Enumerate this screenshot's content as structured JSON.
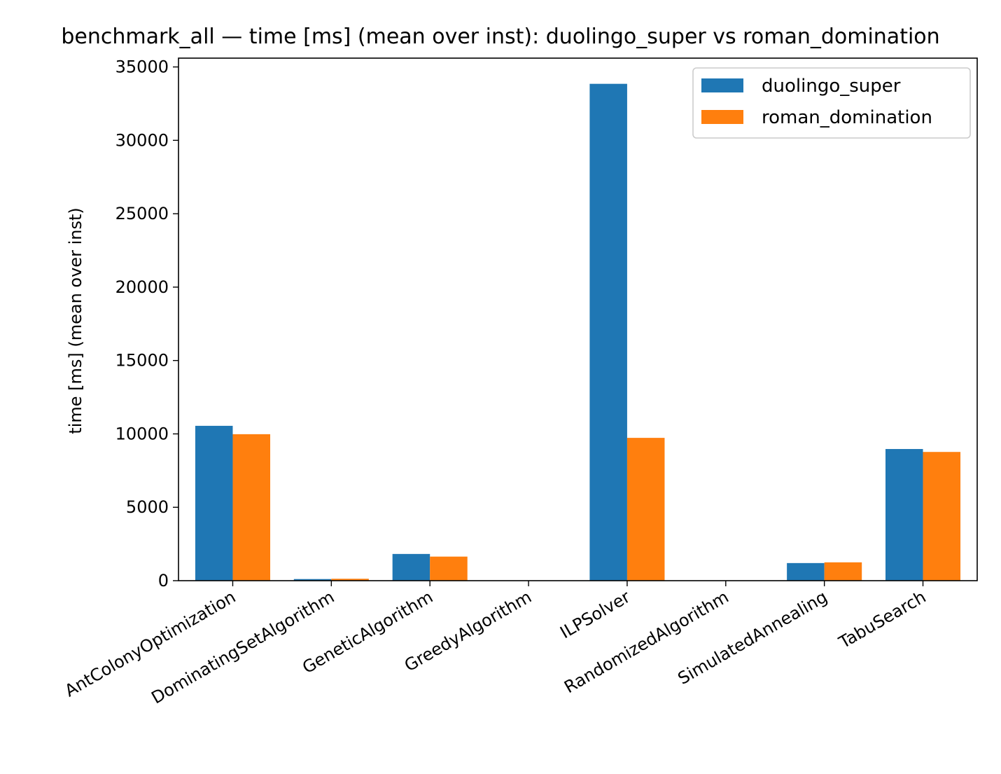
{
  "chart_data": {
    "type": "bar",
    "title": "benchmark_all — time [ms] (mean over inst): duolingo_super vs roman_domination",
    "xlabel": "",
    "ylabel": "time [ms] (mean over inst)",
    "categories": [
      "AntColonyOptimization",
      "DominatingSetAlgorithm",
      "GeneticAlgorithm",
      "GreedyAlgorithm",
      "ILPSolver",
      "RandomizedAlgorithm",
      "SimulatedAnnealing",
      "TabuSearch"
    ],
    "series": [
      {
        "name": "duolingo_super",
        "color": "#1f77b4",
        "values": [
          10550,
          110,
          1820,
          12,
          33850,
          10,
          1200,
          8970
        ]
      },
      {
        "name": "roman_domination",
        "color": "#ff7f0e",
        "values": [
          9980,
          130,
          1640,
          10,
          9730,
          12,
          1250,
          8770
        ]
      }
    ],
    "ylim": [
      0,
      35600
    ],
    "yticks": [
      0,
      5000,
      10000,
      15000,
      20000,
      25000,
      30000,
      35000
    ],
    "ytick_labels": [
      "0",
      "5000",
      "10000",
      "15000",
      "20000",
      "25000",
      "30000",
      "35000"
    ],
    "grid": false,
    "legend_position": "top-right"
  }
}
